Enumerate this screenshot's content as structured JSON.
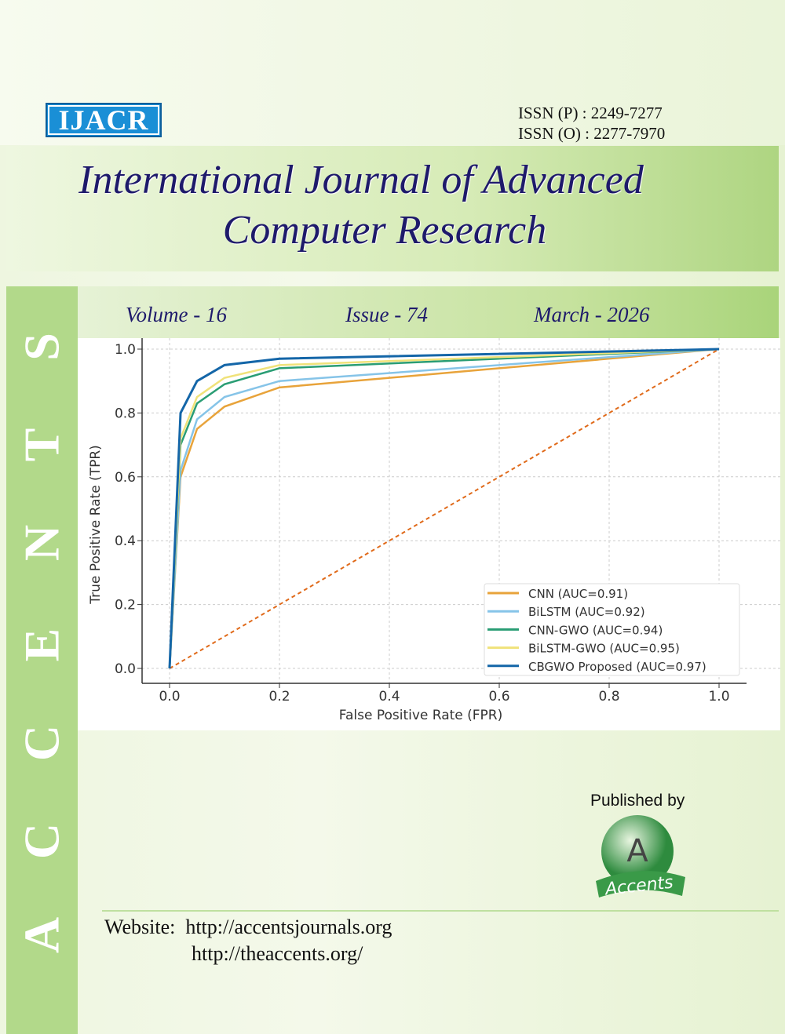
{
  "journal": {
    "logo": "IJACR",
    "issn_print": "ISSN (P)  : 2249-7277",
    "issn_online": "ISSN (O) : 2277-7970",
    "title_line1": "International Journal of Advanced",
    "title_line2": "Computer Research",
    "side_text": [
      "A",
      "C",
      "C",
      "E",
      "N",
      "T",
      "S"
    ],
    "volume": "Volume - 16",
    "issue": "Issue - 74",
    "date": "March - 2026",
    "published_by": "Published by",
    "publisher_logo": "Accents",
    "website_label": "Website:",
    "website1": "http://accentsjournals.org",
    "website2": "http://theaccents.org/"
  },
  "colors": {
    "title": "#1e1a6b",
    "side_strip": "#b2d98a",
    "logo_bg": "#1a8fd6"
  },
  "chart_data": {
    "type": "line",
    "title": "",
    "xlabel": "False Positive Rate (FPR)",
    "ylabel": "True Positive Rate (TPR)",
    "xlim": [
      0,
      1
    ],
    "ylim": [
      0,
      1
    ],
    "xticks": [
      "0.0",
      "0.2",
      "0.4",
      "0.6",
      "0.8",
      "1.0"
    ],
    "yticks": [
      "0.0",
      "0.2",
      "0.4",
      "0.6",
      "0.8",
      "1.0"
    ],
    "grid": true,
    "legend_placement": "lower-right",
    "x": [
      0,
      0.02,
      0.05,
      0.1,
      0.2,
      1.0
    ],
    "series": [
      {
        "name": "CNN (AUC=0.91)",
        "color": "#e8a33a",
        "values": [
          0,
          0.6,
          0.75,
          0.82,
          0.88,
          1.0
        ]
      },
      {
        "name": "BiLSTM (AUC=0.92)",
        "color": "#86c4e8",
        "values": [
          0,
          0.62,
          0.78,
          0.85,
          0.9,
          1.0
        ]
      },
      {
        "name": "CNN-GWO (AUC=0.94)",
        "color": "#2a9d74",
        "values": [
          0,
          0.7,
          0.83,
          0.89,
          0.94,
          1.0
        ]
      },
      {
        "name": "BiLSTM-GWO (AUC=0.95)",
        "color": "#f0e27a",
        "values": [
          0,
          0.72,
          0.85,
          0.91,
          0.95,
          1.0
        ]
      },
      {
        "name": "CBGWO Proposed (AUC=0.97)",
        "color": "#1466a8",
        "values": [
          0,
          0.8,
          0.9,
          0.95,
          0.97,
          1.0
        ]
      }
    ],
    "diagonal": {
      "color": "#e06a1a",
      "style": "dashed"
    }
  }
}
